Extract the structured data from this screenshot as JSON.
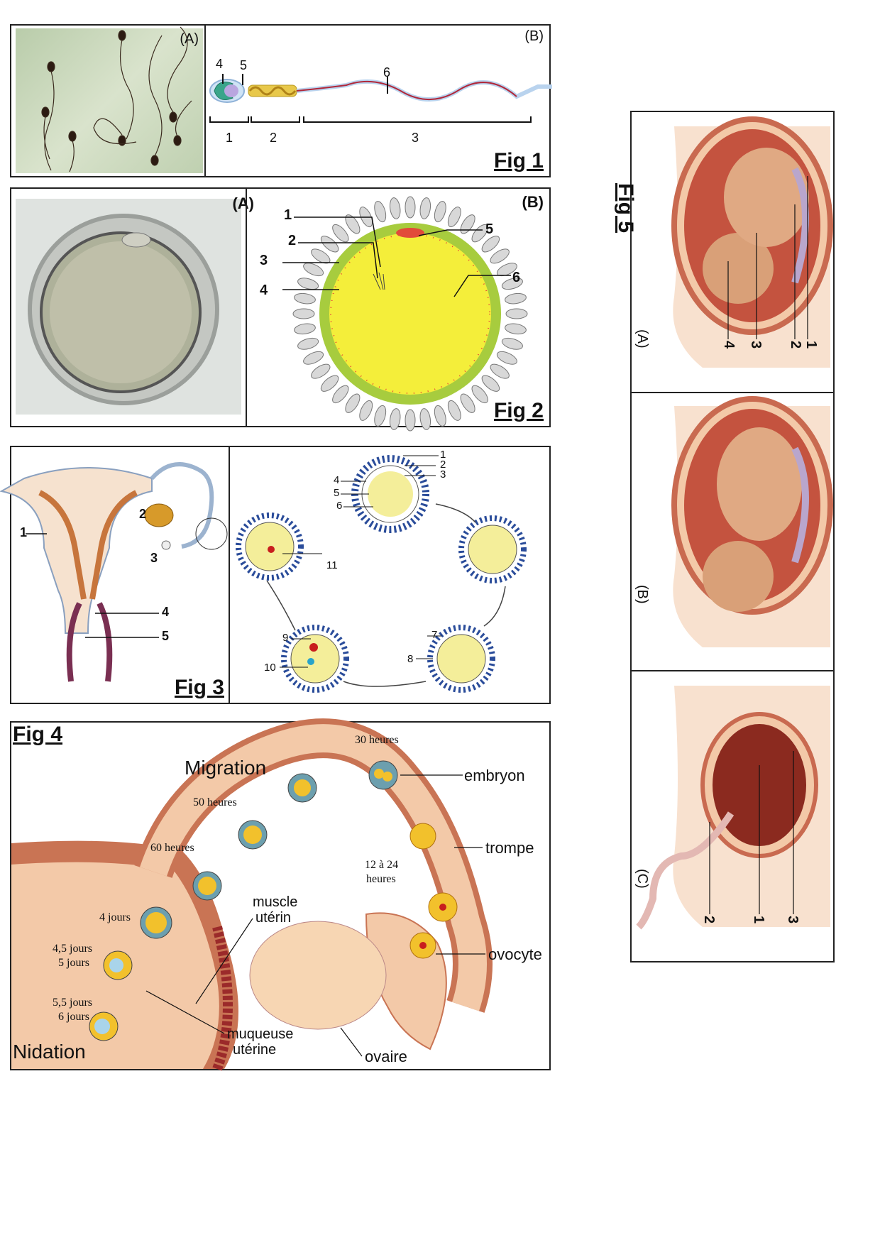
{
  "fig1": {
    "title": "Fig 1",
    "panel_a_label": "(A)",
    "panel_b_label": "(B)",
    "numbers": [
      "1",
      "2",
      "3",
      "4",
      "5",
      "6"
    ]
  },
  "fig2": {
    "title": "Fig 2",
    "panel_a_label": "(A)",
    "panel_b_label": "(B)",
    "numbers": [
      "1",
      "2",
      "3",
      "4",
      "5",
      "6"
    ]
  },
  "fig3": {
    "title": "Fig 3",
    "left_numbers": [
      "1",
      "2",
      "3",
      "4",
      "5"
    ],
    "right_numbers": [
      "1",
      "2",
      "3",
      "4",
      "5",
      "6",
      "7",
      "8",
      "9",
      "10",
      "11"
    ]
  },
  "fig4": {
    "title": "Fig 4",
    "migration": "Migration",
    "nidation": "Nidation",
    "t30": "30 heures",
    "t50": "50 heures",
    "t60": "60 heures",
    "t12": "12 à 24",
    "t12b": "heures",
    "d4": "4 jours",
    "d45": "4,5 jours",
    "d5": "5 jours",
    "d55": "5,5 jours",
    "d6": "6 jours",
    "embryon": "embryon",
    "trompe": "trompe",
    "ovocyte": "ovocyte",
    "ovaire": "ovaire",
    "muscle1": "muscle",
    "muscle2": "utérin",
    "muqueuse1": "muqueuse",
    "muqueuse2": "utérine"
  },
  "fig5": {
    "title": "Fig 5",
    "panel_a_label": "(A)",
    "panel_b_label": "(B)",
    "panel_c_label": "(C)",
    "a_numbers": [
      "1",
      "2",
      "3",
      "4"
    ],
    "c_numbers": [
      "1",
      "2",
      "3"
    ]
  },
  "colors": {
    "yolk": "#f4ee3a",
    "zona": "#a7cc3e",
    "follicle": "#2a4c9a",
    "flesh": "#f3c9a8",
    "uterus": "#c96a50"
  }
}
